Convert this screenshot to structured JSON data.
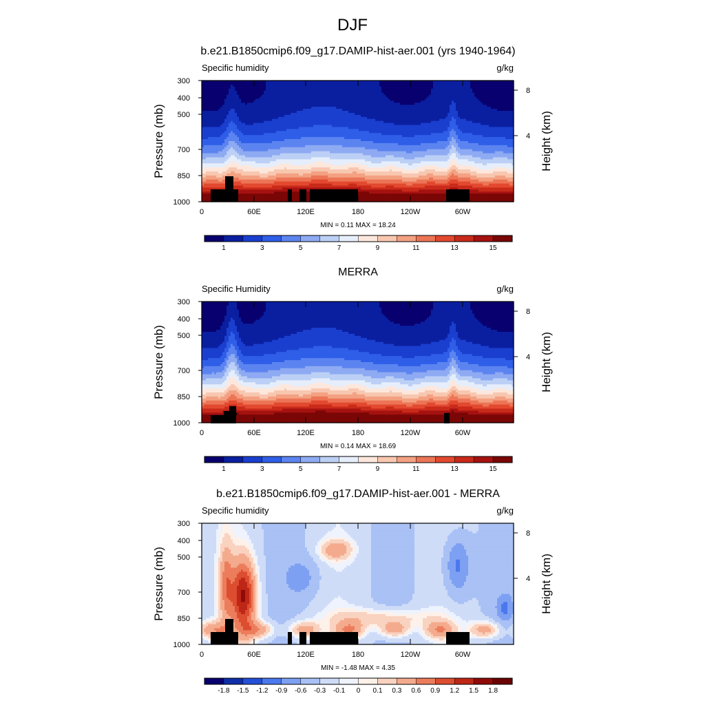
{
  "page_title": "DJF",
  "chart_data": [
    {
      "type": "heatmap",
      "title": "b.e21.B1850cmip6.f09_g17.DAMIP-hist-aer.001 (yrs 1940-1964)",
      "left_label": "Specific humidity",
      "units": "g/kg",
      "ylabel": "Pressure (mb)",
      "y2label": "Height (km)",
      "x_ticks": [
        "0",
        "60E",
        "120E",
        "180",
        "120W",
        "60W"
      ],
      "y_ticks": [
        "300",
        "400",
        "500",
        "700",
        "850",
        "1000"
      ],
      "y2_ticks": [
        "8",
        "4"
      ],
      "stats": "MIN =   0.11  MAX =  18.24",
      "colorbar_labels": [
        "1",
        "3",
        "5",
        "7",
        "9",
        "11",
        "13",
        "15"
      ],
      "colormap": "sequential",
      "min": 0.11,
      "max": 18.24
    },
    {
      "type": "heatmap",
      "title": "MERRA",
      "left_label": "Specific Humidity",
      "units": "g/kg",
      "ylabel": "Pressure (mb)",
      "y2label": "Height (km)",
      "x_ticks": [
        "0",
        "60E",
        "120E",
        "180",
        "120W",
        "60W"
      ],
      "y_ticks": [
        "300",
        "400",
        "500",
        "700",
        "850",
        "1000"
      ],
      "y2_ticks": [
        "8",
        "4"
      ],
      "stats": "MIN =   0.14  MAX =  18.69",
      "colorbar_labels": [
        "1",
        "3",
        "5",
        "7",
        "9",
        "11",
        "13",
        "15"
      ],
      "colormap": "sequential",
      "min": 0.14,
      "max": 18.69
    },
    {
      "type": "heatmap",
      "title": "b.e21.B1850cmip6.f09_g17.DAMIP-hist-aer.001 - MERRA",
      "left_label": "Specific humidity",
      "units": "g/kg",
      "ylabel": "Pressure (mb)",
      "y2label": "Height (km)",
      "x_ticks": [
        "0",
        "60E",
        "120E",
        "180",
        "120W",
        "60W"
      ],
      "y_ticks": [
        "300",
        "400",
        "500",
        "700",
        "850",
        "1000"
      ],
      "y2_ticks": [
        "8",
        "4"
      ],
      "stats": "MIN =  -1.48  MAX =   4.35",
      "colorbar_labels": [
        "-1.8",
        "-1.5",
        "-1.2",
        "-0.9",
        "-0.6",
        "-0.3",
        "-0.1",
        "0",
        "0.1",
        "0.3",
        "0.6",
        "0.9",
        "1.2",
        "1.5",
        "1.8"
      ],
      "colormap": "diverging",
      "min": -1.48,
      "max": 4.35
    }
  ],
  "colors": {
    "sequential": [
      "#08006e",
      "#0a1fa0",
      "#1a3fcf",
      "#2f5ee8",
      "#5c84f0",
      "#8eaaf2",
      "#bcd0f6",
      "#e6eefc",
      "#fde7dc",
      "#f8c7b0",
      "#f3a182",
      "#ec7556",
      "#e2492f",
      "#c92a1a",
      "#a51210",
      "#7a0606"
    ],
    "diverging": [
      "#08006e",
      "#0f2ea8",
      "#2450d8",
      "#4b78ee",
      "#7ea0f2",
      "#a9c1f5",
      "#cfdcf8",
      "#eef3fd",
      "#fdf1ea",
      "#f9d2c0",
      "#f4ab8d",
      "#ec7d5c",
      "#dd4d30",
      "#be2716",
      "#8f0b08",
      "#6a0404"
    ]
  }
}
